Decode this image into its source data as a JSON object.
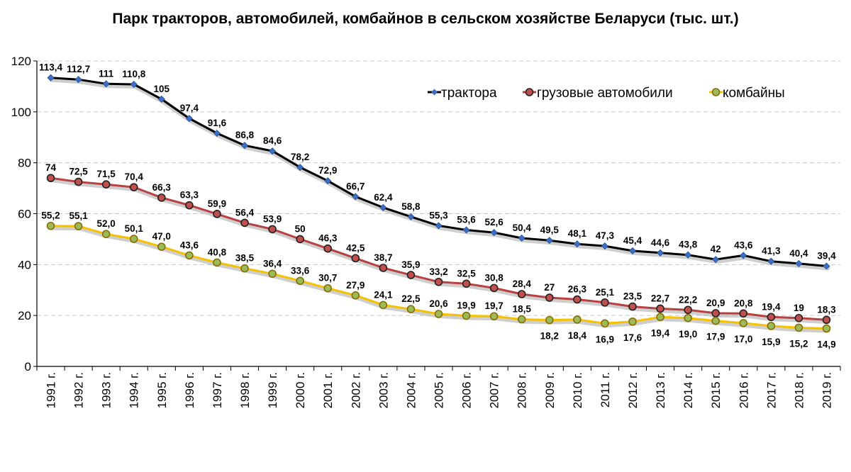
{
  "chart_data": {
    "type": "line",
    "title": "Парк тракторов, автомобилей, комбайнов в сельском хозяйстве Беларуси (тыс. шт.)",
    "xlabel": "",
    "ylabel": "",
    "ylim": [
      0,
      120
    ],
    "yticks": [
      0,
      20,
      40,
      60,
      80,
      100,
      120
    ],
    "grid": true,
    "legend_position": "top-right",
    "categories": [
      "1991 г.",
      "1992 г.",
      "1993 г.",
      "1994 г.",
      "1995 г.",
      "1996 г.",
      "1997 г.",
      "1998 г.",
      "1999 г.",
      "2000 г.",
      "2001 г.",
      "2002 г.",
      "2003 г.",
      "2004 г.",
      "2005 г.",
      "2006 г.",
      "2007 г.",
      "2008 г.",
      "2009 г.",
      "2010 г.",
      "2011 г.",
      "2012 г.",
      "2013 г.",
      "2014 г.",
      "2015 г.",
      "2016 г.",
      "2017 г.",
      "2018 г.",
      "2019 г."
    ],
    "series": [
      {
        "name": "трактора",
        "color": "#000000",
        "marker_color": "#3a6fc4",
        "marker": "diamond",
        "values": [
          113.4,
          112.7,
          111,
          110.8,
          105,
          97.4,
          91.6,
          86.8,
          84.6,
          78.2,
          72.9,
          66.7,
          62.4,
          58.8,
          55.3,
          53.6,
          52.6,
          50.4,
          49.5,
          48.1,
          47.3,
          45.4,
          44.6,
          43.8,
          42,
          43.6,
          41.3,
          40.4,
          39.4
        ],
        "labels": [
          "113,4",
          "112,7",
          "111",
          "110,8",
          "105",
          "97,4",
          "91,6",
          "86,8",
          "84,6",
          "78,2",
          "72,9",
          "66,7",
          "62,4",
          "58,8",
          "55,3",
          "53,6",
          "52,6",
          "50,4",
          "49,5",
          "48,1",
          "47,3",
          "45,4",
          "44,6",
          "43,8",
          "42",
          "43,6",
          "41,3",
          "40,4",
          "39,4"
        ]
      },
      {
        "name": "грузовые автомобили",
        "color": "#b94141",
        "marker_color": "#c0504d",
        "marker": "circle",
        "values": [
          74,
          72.5,
          71.5,
          70.4,
          66.3,
          63.3,
          59.9,
          56.4,
          53.9,
          50,
          46.3,
          42.5,
          38.7,
          35.9,
          33.2,
          32.5,
          30.8,
          28.4,
          27,
          26.3,
          25.1,
          23.5,
          22.7,
          22.2,
          20.9,
          20.8,
          19.4,
          19,
          18.3
        ],
        "labels": [
          "74",
          "72,5",
          "71,5",
          "70,4",
          "66,3",
          "63,3",
          "59,9",
          "56,4",
          "53,9",
          "50",
          "46,3",
          "42,5",
          "38,7",
          "35,9",
          "33,2",
          "32,5",
          "30,8",
          "28,4",
          "27",
          "26,3",
          "25,1",
          "23,5",
          "22,7",
          "22,2",
          "20,9",
          "20,8",
          "19,4",
          "19",
          "18,3"
        ]
      },
      {
        "name": "комбайны",
        "color": "#f5c200",
        "marker_color": "#9bbb59",
        "marker": "circle",
        "values": [
          55.2,
          55.1,
          52.0,
          50.1,
          47.0,
          43.6,
          40.8,
          38.5,
          36.4,
          33.6,
          30.7,
          27.9,
          24.1,
          22.5,
          20.6,
          19.9,
          19.7,
          18.5,
          18.2,
          18.4,
          16.9,
          17.6,
          19.4,
          19.0,
          17.9,
          17.0,
          15.9,
          15.2,
          14.9
        ],
        "labels": [
          "55,2",
          "55,1",
          "52,0",
          "50,1",
          "47,0",
          "43,6",
          "40,8",
          "38,5",
          "36,4",
          "33,6",
          "30,7",
          "27,9",
          "24,1",
          "22,5",
          "20,6",
          "19,9",
          "19,7",
          "18,5",
          "18,2",
          "18,4",
          "16,9",
          "17,6",
          "19,4",
          "19,0",
          "17,9",
          "17,0",
          "15,9",
          "15,2",
          "14,9"
        ]
      }
    ]
  }
}
